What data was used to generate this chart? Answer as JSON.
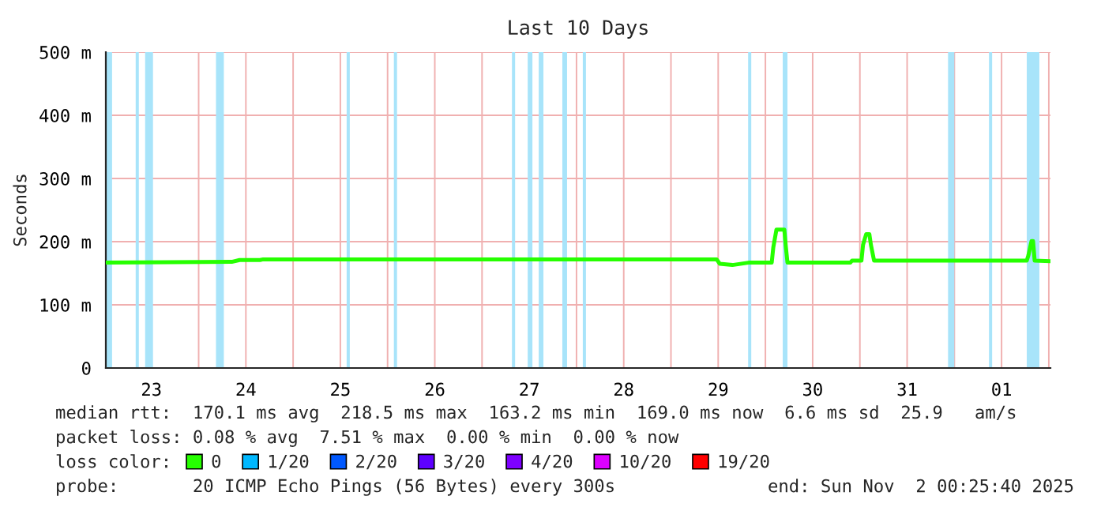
{
  "chart_data": {
    "type": "line",
    "title": "Last 10 Days",
    "ylabel": "Seconds",
    "xlim": [
      "2025-10-23T00:25",
      "2025-11-02T00:25"
    ],
    "xticks": [
      {
        "value": "2025-10-23T12:00",
        "label": "23"
      },
      {
        "value": "2025-10-24T00:00",
        "label": null
      },
      {
        "value": "2025-10-24T12:00",
        "label": "24"
      },
      {
        "value": "2025-10-25T00:00",
        "label": null
      },
      {
        "value": "2025-10-25T12:00",
        "label": "25"
      },
      {
        "value": "2025-10-26T00:00",
        "label": null
      },
      {
        "value": "2025-10-26T12:00",
        "label": "26"
      },
      {
        "value": "2025-10-27T00:00",
        "label": null
      },
      {
        "value": "2025-10-27T12:00",
        "label": "27"
      },
      {
        "value": "2025-10-28T00:00",
        "label": null
      },
      {
        "value": "2025-10-28T12:00",
        "label": "28"
      },
      {
        "value": "2025-10-29T00:00",
        "label": null
      },
      {
        "value": "2025-10-29T12:00",
        "label": "29"
      },
      {
        "value": "2025-10-30T00:00",
        "label": null
      },
      {
        "value": "2025-10-30T12:00",
        "label": "30"
      },
      {
        "value": "2025-10-31T00:00",
        "label": null
      },
      {
        "value": "2025-10-31T12:00",
        "label": "31"
      },
      {
        "value": "2025-11-01T00:00",
        "label": null
      },
      {
        "value": "2025-11-01T12:00",
        "label": "01"
      },
      {
        "value": "2025-11-02T00:00",
        "label": null
      }
    ],
    "ylim": [
      0,
      500
    ],
    "yticks": [
      0,
      {
        "value": 100,
        "label": "100 m"
      },
      {
        "value": 200,
        "label": "200 m"
      },
      {
        "value": 300,
        "label": "300 m"
      },
      {
        "value": 400,
        "label": "400 m"
      },
      {
        "value": 500,
        "label": "500 m"
      }
    ],
    "grid": true,
    "legend": "bottom",
    "legend_title": "loss color:",
    "marker": "none",
    "line_style": "solid",
    "x": [
      "2025-10-23T00:25",
      "2025-10-24T08:24",
      "2025-10-24T10:24",
      "2025-10-24T15:36",
      "2025-10-24T16:24",
      "2025-10-29T11:36",
      "2025-10-29T12:24",
      "2025-10-29T15:36",
      "2025-10-29T20:00",
      "2025-10-30T01:36",
      "2025-10-30T02:00",
      "2025-10-30T02:48",
      "2025-10-30T04:48",
      "2025-10-30T05:12",
      "2025-10-30T05:36",
      "2025-10-30T21:36",
      "2025-10-30T22:00",
      "2025-10-31T00:24",
      "2025-10-31T00:48",
      "2025-10-31T01:36",
      "2025-10-31T02:24",
      "2025-10-31T02:48",
      "2025-10-31T03:36",
      "2025-11-01T18:24",
      "2025-11-01T18:48",
      "2025-11-01T19:36",
      "2025-11-01T20:00",
      "2025-11-01T20:24",
      "2025-11-02T00:25"
    ],
    "series": [
      {
        "name": "0",
        "color": "#26ff00",
        "values": [
          167,
          168,
          171,
          171,
          172,
          172,
          165,
          163,
          167,
          167,
          191,
          219,
          219,
          191,
          167,
          167,
          170,
          170,
          195,
          212,
          212,
          195,
          170,
          170,
          178,
          201,
          201,
          170,
          169
        ]
      },
      {
        "name": "1/20",
        "color": "#00b8ff",
        "values": [
          null,
          null,
          null,
          null,
          null,
          null,
          null,
          null,
          null,
          null,
          null,
          null,
          null,
          null,
          null,
          null,
          null,
          null,
          null,
          null,
          null,
          null,
          null,
          null,
          null,
          null,
          null,
          null,
          null
        ]
      },
      {
        "name": "2/20",
        "color": "#0059ff",
        "values": [
          null,
          null,
          null,
          null,
          null,
          null,
          null,
          null,
          null,
          null,
          null,
          null,
          null,
          null,
          null,
          null,
          null,
          null,
          null,
          null,
          null,
          null,
          null,
          null,
          null,
          null,
          null,
          null,
          null
        ]
      },
      {
        "name": "3/20",
        "color": "#5e00ff",
        "values": [
          null,
          null,
          null,
          null,
          null,
          null,
          null,
          null,
          null,
          null,
          null,
          null,
          null,
          null,
          null,
          null,
          null,
          null,
          null,
          null,
          null,
          null,
          null,
          null,
          null,
          null,
          null,
          null,
          null
        ]
      },
      {
        "name": "4/20",
        "color": "#7e00ff",
        "values": [
          null,
          null,
          null,
          null,
          null,
          null,
          null,
          null,
          null,
          null,
          null,
          null,
          null,
          null,
          null,
          null,
          null,
          null,
          null,
          null,
          null,
          null,
          null,
          null,
          null,
          null,
          null,
          null,
          null
        ]
      },
      {
        "name": "10/20",
        "color": "#dd00ff",
        "values": [
          null,
          null,
          null,
          null,
          null,
          null,
          null,
          null,
          null,
          null,
          null,
          null,
          null,
          null,
          null,
          null,
          null,
          null,
          null,
          null,
          null,
          null,
          null,
          null,
          null,
          null,
          null,
          null,
          null
        ]
      },
      {
        "name": "19/20",
        "color": "#ff0000",
        "values": [
          null,
          null,
          null,
          null,
          null,
          null,
          null,
          null,
          null,
          null,
          null,
          null,
          null,
          null,
          null,
          null,
          null,
          null,
          null,
          null,
          null,
          null,
          null,
          null,
          null,
          null,
          null,
          null,
          null
        ]
      }
    ],
    "bands": [
      {
        "axis": "x",
        "from": "2025-10-23T00:25",
        "to": "2025-10-23T02:00",
        "color": "#a8e4fa"
      },
      {
        "axis": "x",
        "from": "2025-10-23T08:00",
        "to": "2025-10-23T08:48",
        "color": "#a8e4fa"
      },
      {
        "axis": "x",
        "from": "2025-10-23T10:24",
        "to": "2025-10-23T12:24",
        "color": "#a8e4fa"
      },
      {
        "axis": "x",
        "from": "2025-10-24T04:24",
        "to": "2025-10-24T06:24",
        "color": "#a8e4fa"
      },
      {
        "axis": "x",
        "from": "2025-10-25T13:36",
        "to": "2025-10-25T14:24",
        "color": "#a8e4fa"
      },
      {
        "axis": "x",
        "from": "2025-10-26T01:36",
        "to": "2025-10-26T02:24",
        "color": "#a8e4fa"
      },
      {
        "axis": "x",
        "from": "2025-10-27T07:36",
        "to": "2025-10-27T08:24",
        "color": "#a8e4fa"
      },
      {
        "axis": "x",
        "from": "2025-10-27T11:36",
        "to": "2025-10-27T12:48",
        "color": "#a8e4fa"
      },
      {
        "axis": "x",
        "from": "2025-10-27T14:24",
        "to": "2025-10-27T15:36",
        "color": "#a8e4fa"
      },
      {
        "axis": "x",
        "from": "2025-10-27T20:24",
        "to": "2025-10-27T21:36",
        "color": "#a8e4fa"
      },
      {
        "axis": "x",
        "from": "2025-10-28T01:36",
        "to": "2025-10-28T02:24",
        "color": "#a8e4fa"
      },
      {
        "axis": "x",
        "from": "2025-10-29T19:36",
        "to": "2025-10-29T20:24",
        "color": "#a8e4fa"
      },
      {
        "axis": "x",
        "from": "2025-10-30T04:24",
        "to": "2025-10-30T05:36",
        "color": "#a8e4fa"
      },
      {
        "axis": "x",
        "from": "2025-10-31T22:24",
        "to": "2025-11-01T00:00",
        "color": "#a8e4fa"
      },
      {
        "axis": "x",
        "from": "2025-11-01T08:48",
        "to": "2025-11-01T09:36",
        "color": "#a8e4fa"
      },
      {
        "axis": "x",
        "from": "2025-11-01T18:24",
        "to": "2025-11-01T21:36",
        "color": "#a8e4fa"
      }
    ],
    "annotations": [
      "median rtt:  170.1 ms avg  218.5 ms max  163.2 ms min  169.0 ms now  6.6 ms sd  25.9   am/s",
      "packet loss: 0.08 % avg  7.51 % max  0.00 % min  0.00 % now",
      "probe:       20 ICMP Echo Pings (56 Bytes) every 300s",
      "end: Sun Nov  2 00:25:40 2025"
    ]
  }
}
